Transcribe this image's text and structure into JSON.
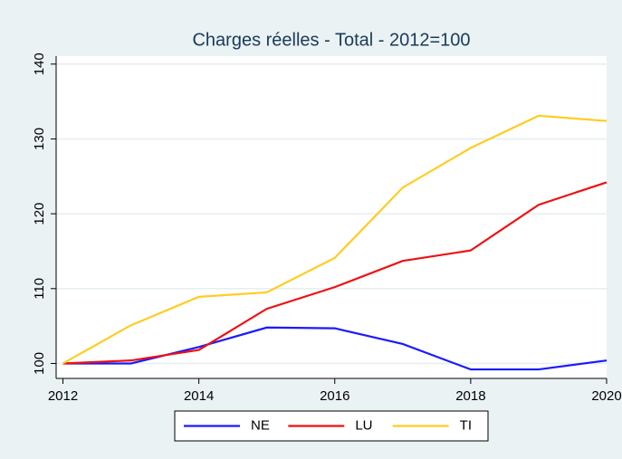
{
  "chart_data": {
    "type": "line",
    "title": "Charges réelles - Total - 2012=100",
    "x": [
      2012,
      2013,
      2014,
      2015,
      2016,
      2017,
      2018,
      2019,
      2020
    ],
    "series": [
      {
        "name": "NE",
        "color": "#1a1aff",
        "values": [
          100,
          100,
          102.2,
          104.8,
          104.7,
          102.6,
          99.2,
          99.2,
          100.4
        ]
      },
      {
        "name": "LU",
        "color": "#ee1111",
        "values": [
          100,
          100.4,
          101.8,
          107.3,
          110.2,
          113.7,
          115.1,
          121.2,
          124.2
        ]
      },
      {
        "name": "TI",
        "color": "#ffcc22",
        "values": [
          100,
          105.1,
          108.9,
          109.5,
          114.1,
          123.5,
          128.8,
          133.1,
          132.4
        ]
      }
    ],
    "xlim": [
      2011.9,
      2020
    ],
    "xticks": [
      2012,
      2014,
      2016,
      2018,
      2020
    ],
    "ylim": [
      98,
      140.7
    ],
    "yticks": [
      100,
      110,
      120,
      130,
      140
    ],
    "grid": true,
    "legend": "bottom"
  }
}
